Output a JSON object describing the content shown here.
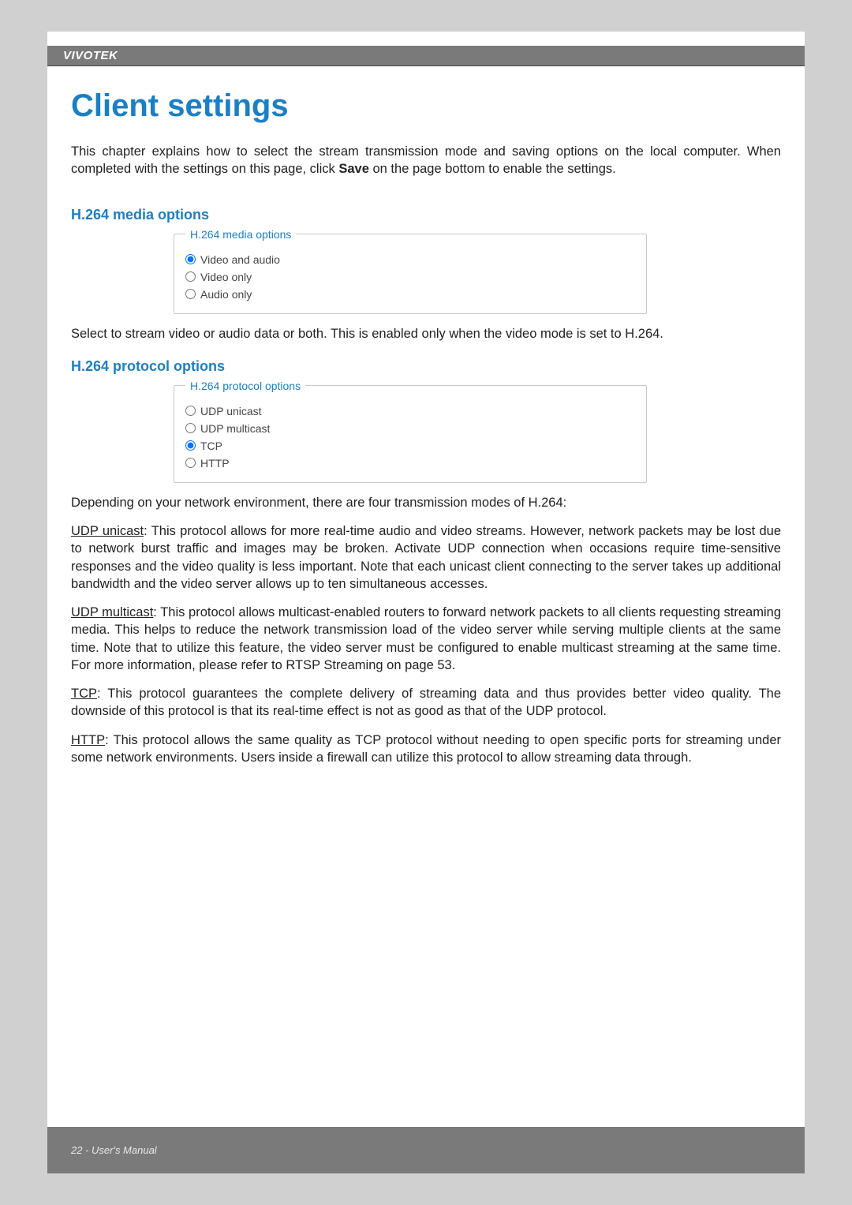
{
  "header": {
    "brand": "VIVOTEK"
  },
  "title": "Client settings",
  "intro": {
    "pre": "This chapter explains how to select the stream transmission mode and saving options on the local computer. When completed with the settings on this page, click ",
    "bold": "Save",
    "post": " on the page bottom to enable the settings."
  },
  "media": {
    "heading": "H.264 media options",
    "legend": "H.264  media options",
    "options": [
      {
        "label": "Video and audio",
        "checked": true
      },
      {
        "label": "Video only",
        "checked": false
      },
      {
        "label": "Audio only",
        "checked": false
      }
    ],
    "desc": "Select to stream video or audio data or both. This is enabled only when the video mode is set to H.264."
  },
  "protocol": {
    "heading": "H.264 protocol options",
    "legend": "H.264  protocol options",
    "options": [
      {
        "label": "UDP unicast",
        "checked": false
      },
      {
        "label": "UDP multicast",
        "checked": false
      },
      {
        "label": "TCP",
        "checked": true
      },
      {
        "label": "HTTP",
        "checked": false
      }
    ],
    "intro": "Depending on your network environment, there are four transmission modes of H.264:",
    "udp_unicast": {
      "label": "UDP unicast",
      "text": ": This protocol allows for more real-time audio and video streams. However, network packets may be lost due to network burst traffic and images may be broken. Activate UDP connection when occasions require time-sensitive responses and the video quality is less important. Note that each unicast client connecting to the server takes up additional bandwidth and the video server allows up to ten simultaneous accesses."
    },
    "udp_multicast": {
      "label": "UDP multicast",
      "text": ": This protocol allows multicast-enabled routers to forward network packets to all clients requesting streaming media. This helps to reduce the network transmission load of the video server while serving multiple clients at the same time. Note that to utilize this feature, the video server must be configured to enable multicast streaming at the same time. For more information, please refer to  RTSP Streaming on page 53."
    },
    "tcp": {
      "label": "TCP",
      "text": ": This protocol guarantees the complete delivery of streaming data and thus provides better video quality. The downside of this protocol is that its real-time effect is not as good as that of the UDP protocol."
    },
    "http": {
      "label": "HTTP",
      "text": ": This protocol allows the same quality as TCP protocol without needing to open specific ports for streaming under some network environments. Users inside a firewall can utilize this protocol to allow streaming data through."
    }
  },
  "footer": {
    "text": "22 - User's Manual"
  },
  "colors": {
    "page_bg": "#d0d0d0",
    "paper_bg": "#ffffff",
    "accent": "#1b7fc4",
    "header_bg": "#7a7a7a",
    "body_text": "#222222",
    "muted_text": "#444444",
    "fieldset_border": "#c8c8c8"
  }
}
